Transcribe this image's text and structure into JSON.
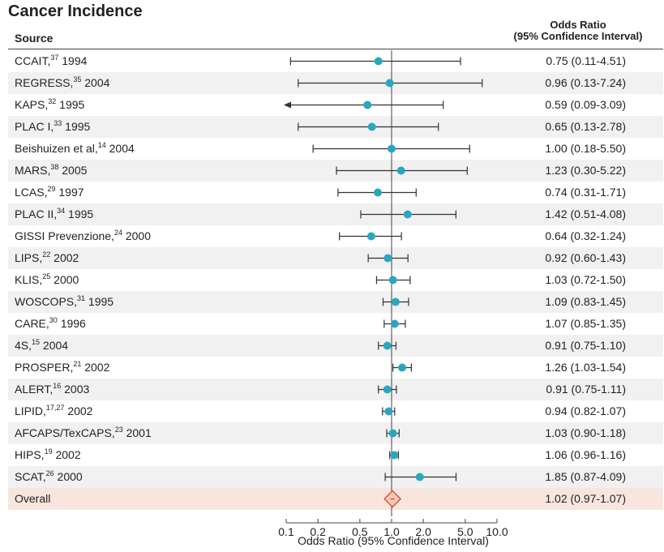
{
  "header": {
    "title": "Cancer Incidence",
    "source_label": "Source",
    "or_label_line1": "Odds Ratio",
    "or_label_line2": "(95% Confidence Interval)"
  },
  "chart_data": {
    "type": "forest",
    "xscale": "log",
    "xlabel": "Odds Ratio (95% Confidence Interval)",
    "xticks": [
      0.1,
      0.2,
      0.5,
      1.0,
      2.0,
      5.0,
      10.0
    ],
    "xtick_labels": [
      "0.1",
      "0.2",
      "0.5",
      "1.0",
      "2.0",
      "5.0",
      "10.0"
    ],
    "xlim": [
      0.1,
      10.0
    ],
    "reference_line": 1.0,
    "colors": {
      "point": "#2aa7c0",
      "overall_fill": "#f6c9b9",
      "overall_stroke": "#e0533c",
      "whisker": "#333333"
    },
    "studies": [
      {
        "name": "CCAIT,",
        "ref": "37",
        "year": "1994",
        "or": 0.75,
        "lo": 0.11,
        "hi": 4.51,
        "ci_text": "0.75 (0.11-4.51)"
      },
      {
        "name": "REGRESS,",
        "ref": "35",
        "year": "2004",
        "or": 0.96,
        "lo": 0.13,
        "hi": 7.24,
        "ci_text": "0.96 (0.13-7.24)"
      },
      {
        "name": "KAPS,",
        "ref": "32",
        "year": "1995",
        "or": 0.59,
        "lo": 0.09,
        "hi": 3.09,
        "ci_text": "0.59 (0.09-3.09)",
        "arrow_left": true
      },
      {
        "name": "PLAC I,",
        "ref": "33",
        "year": "1995",
        "or": 0.65,
        "lo": 0.13,
        "hi": 2.78,
        "ci_text": "0.65 (0.13-2.78)"
      },
      {
        "name": "Beishuizen et al,",
        "ref": "14",
        "year": "2004",
        "or": 1.0,
        "lo": 0.18,
        "hi": 5.5,
        "ci_text": "1.00 (0.18-5.50)"
      },
      {
        "name": "MARS,",
        "ref": "38",
        "year": "2005",
        "or": 1.23,
        "lo": 0.3,
        "hi": 5.22,
        "ci_text": "1.23 (0.30-5.22)"
      },
      {
        "name": "LCAS,",
        "ref": "29",
        "year": "1997",
        "or": 0.74,
        "lo": 0.31,
        "hi": 1.71,
        "ci_text": "0.74 (0.31-1.71)"
      },
      {
        "name": "PLAC II,",
        "ref": "34",
        "year": "1995",
        "or": 1.42,
        "lo": 0.51,
        "hi": 4.08,
        "ci_text": "1.42 (0.51-4.08)"
      },
      {
        "name": "GISSI Prevenzione,",
        "ref": "24",
        "year": "2000",
        "or": 0.64,
        "lo": 0.32,
        "hi": 1.24,
        "ci_text": "0.64 (0.32-1.24)"
      },
      {
        "name": "LIPS,",
        "ref": "22",
        "year": "2002",
        "or": 0.92,
        "lo": 0.6,
        "hi": 1.43,
        "ci_text": "0.92 (0.60-1.43)"
      },
      {
        "name": "KLIS,",
        "ref": "25",
        "year": "2000",
        "or": 1.03,
        "lo": 0.72,
        "hi": 1.5,
        "ci_text": "1.03 (0.72-1.50)"
      },
      {
        "name": "WOSCOPS,",
        "ref": "31",
        "year": "1995",
        "or": 1.09,
        "lo": 0.83,
        "hi": 1.45,
        "ci_text": "1.09 (0.83-1.45)"
      },
      {
        "name": "CARE,",
        "ref": "30",
        "year": "1996",
        "or": 1.07,
        "lo": 0.85,
        "hi": 1.35,
        "ci_text": "1.07 (0.85-1.35)"
      },
      {
        "name": "4S,",
        "ref": "15",
        "year": "2004",
        "or": 0.91,
        "lo": 0.75,
        "hi": 1.1,
        "ci_text": "0.91 (0.75-1.10)"
      },
      {
        "name": "PROSPER,",
        "ref": "21",
        "year": "2002",
        "or": 1.26,
        "lo": 1.03,
        "hi": 1.54,
        "ci_text": "1.26 (1.03-1.54)"
      },
      {
        "name": "ALERT,",
        "ref": "16",
        "year": "2003",
        "or": 0.91,
        "lo": 0.75,
        "hi": 1.11,
        "ci_text": "0.91 (0.75-1.11)"
      },
      {
        "name": "LIPID,",
        "ref": "17,27",
        "year": "2002",
        "or": 0.94,
        "lo": 0.82,
        "hi": 1.07,
        "ci_text": "0.94 (0.82-1.07)"
      },
      {
        "name": "AFCAPS/TexCAPS,",
        "ref": "23",
        "year": "2001",
        "or": 1.03,
        "lo": 0.9,
        "hi": 1.18,
        "ci_text": "1.03 (0.90-1.18)"
      },
      {
        "name": "HIPS,",
        "ref": "19",
        "year": "2002",
        "or": 1.06,
        "lo": 0.96,
        "hi": 1.16,
        "ci_text": "1.06 (0.96-1.16)"
      },
      {
        "name": "SCAT,",
        "ref": "26",
        "year": "2000",
        "or": 1.85,
        "lo": 0.87,
        "hi": 4.09,
        "ci_text": "1.85 (0.87-4.09)"
      }
    ],
    "overall": {
      "name": "Overall",
      "or": 1.02,
      "lo": 0.97,
      "hi": 1.07,
      "ci_text": "1.02 (0.97-1.07)"
    }
  }
}
